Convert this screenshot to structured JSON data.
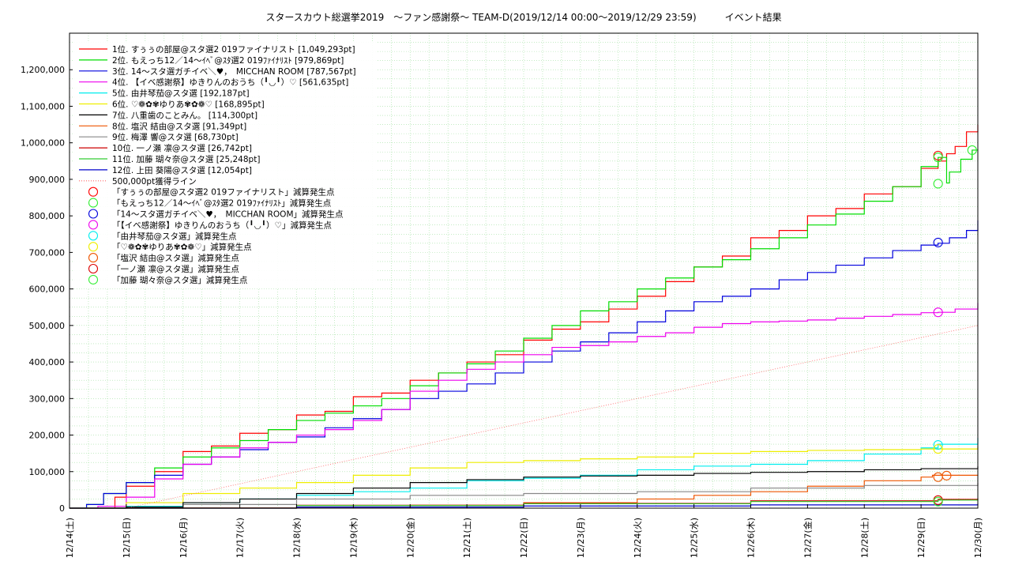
{
  "chart_data": {
    "type": "line",
    "title": "スタースカウト総選挙2019　～ファン感謝祭～ TEAM-D(2019/12/14 00:00～2019/12/29 23:59)　　　イベント結果",
    "xlabel": "",
    "ylabel": "",
    "ylim": [
      0,
      1300000
    ],
    "grid": true,
    "legend_position": "top-left",
    "x_tick_labels": [
      "12/14(土)",
      "12/15(日)",
      "12/16(月)",
      "12/17(火)",
      "12/18(水)",
      "12/19(木)",
      "12/20(金)",
      "12/21(土)",
      "12/22(日)",
      "12/23(月)",
      "12/24(火)",
      "12/25(水)",
      "12/26(木)",
      "12/27(金)",
      "12/28(土)",
      "12/29(日)",
      "12/30(月)"
    ],
    "y_ticks": [
      0,
      100000,
      200000,
      300000,
      400000,
      500000,
      600000,
      700000,
      800000,
      900000,
      1000000,
      1100000,
      1200000
    ],
    "y_tick_labels": [
      "0",
      "100,000",
      "200,000",
      "300,000",
      "400,000",
      "500,000",
      "600,000",
      "700,000",
      "800,000",
      "900,000",
      "1,000,000",
      "1,100,000",
      "1,200,000"
    ],
    "x_unit": "days since 12/14 00:00",
    "series": [
      {
        "name": "1位. すぅぅの部屋@スタ選2 019ファイナリスト [1,049,293pt]",
        "color": "#ff0000",
        "x": [
          0,
          0.5,
          0.8,
          1.0,
          1.5,
          2.0,
          2.5,
          3.0,
          3.5,
          4.0,
          4.5,
          5.0,
          5.5,
          6.0,
          6.5,
          7.0,
          7.5,
          8.0,
          8.5,
          9.0,
          9.5,
          10.0,
          10.5,
          11.0,
          11.5,
          12.0,
          12.5,
          13.0,
          13.5,
          14.0,
          14.5,
          15.0,
          15.3,
          15.45,
          15.6,
          15.8,
          16.0
        ],
        "y": [
          0,
          0,
          30000,
          60000,
          100000,
          155000,
          170000,
          205000,
          215000,
          255000,
          265000,
          305000,
          315000,
          350000,
          370000,
          400000,
          420000,
          460000,
          490000,
          510000,
          545000,
          580000,
          620000,
          660000,
          690000,
          740000,
          760000,
          800000,
          820000,
          860000,
          880000,
          930000,
          950000,
          970000,
          990000,
          1030000,
          1049293
        ]
      },
      {
        "name": "2位. もえっち12／14～ｲﾍﾞ@ｽﾀ選2 019ﾌｧｲﾅﾘｽﾄ [979,869pt]",
        "color": "#00dd00",
        "x": [
          0,
          0.3,
          0.6,
          1.0,
          1.5,
          2.0,
          2.5,
          3.0,
          3.5,
          4.0,
          4.5,
          5.0,
          5.5,
          6.0,
          6.5,
          7.0,
          7.5,
          8.0,
          8.5,
          9.0,
          9.5,
          10.0,
          10.5,
          11.0,
          11.5,
          12.0,
          12.5,
          13.0,
          13.5,
          14.0,
          14.5,
          15.0,
          15.3,
          15.45,
          15.5,
          15.7,
          15.9,
          16.0
        ],
        "y": [
          0,
          10000,
          40000,
          70000,
          110000,
          140000,
          165000,
          185000,
          215000,
          240000,
          260000,
          280000,
          300000,
          335000,
          370000,
          395000,
          430000,
          465000,
          500000,
          540000,
          565000,
          600000,
          630000,
          660000,
          680000,
          710000,
          740000,
          775000,
          805000,
          840000,
          880000,
          935000,
          960000,
          890000,
          920000,
          955000,
          980000,
          979869
        ]
      },
      {
        "name": "3位. 14～スタ選ガチイベ＼♥，　MICCHAN ROOM [787,567pt]",
        "color": "#0000dd",
        "x": [
          0,
          0.3,
          0.6,
          1.0,
          1.5,
          2.0,
          2.5,
          3.0,
          3.5,
          4.0,
          4.5,
          5.0,
          5.5,
          6.0,
          6.5,
          7.0,
          7.5,
          8.0,
          8.5,
          9.0,
          9.5,
          10.0,
          10.5,
          11.0,
          11.5,
          12.0,
          12.5,
          13.0,
          13.5,
          14.0,
          14.5,
          15.0,
          15.3,
          15.5,
          15.8,
          16.0
        ],
        "y": [
          0,
          10000,
          40000,
          70000,
          90000,
          120000,
          140000,
          160000,
          180000,
          195000,
          220000,
          245000,
          270000,
          300000,
          320000,
          340000,
          370000,
          400000,
          430000,
          455000,
          480000,
          510000,
          540000,
          565000,
          580000,
          600000,
          625000,
          645000,
          665000,
          685000,
          705000,
          720000,
          725000,
          740000,
          760000,
          787567
        ]
      },
      {
        "name": "4位. 【イベ感謝祭】ゆきりんのおうち（╹◡╹）♡ [561,635pt]",
        "color": "#ee00ee",
        "x": [
          0,
          0.5,
          1.0,
          1.5,
          2.0,
          2.5,
          3.0,
          3.5,
          4.0,
          4.5,
          5.0,
          5.5,
          6.0,
          6.5,
          7.0,
          7.5,
          8.0,
          8.5,
          9.0,
          9.5,
          10.0,
          10.5,
          11.0,
          11.5,
          12.0,
          12.5,
          13.0,
          13.5,
          14.0,
          14.5,
          15.0,
          15.3,
          15.6,
          16.0
        ],
        "y": [
          0,
          5000,
          30000,
          80000,
          120000,
          140000,
          165000,
          180000,
          200000,
          215000,
          240000,
          270000,
          320000,
          350000,
          380000,
          400000,
          420000,
          440000,
          445000,
          455000,
          470000,
          480000,
          495000,
          505000,
          510000,
          512000,
          515000,
          520000,
          525000,
          530000,
          535000,
          536000,
          545000,
          561635
        ]
      },
      {
        "name": "5位. 由井琴茄@スタ選 [192,187pt]",
        "color": "#00eeee",
        "x": [
          0,
          1,
          2,
          3,
          4,
          5,
          6,
          7,
          8,
          9,
          10,
          11,
          12,
          13,
          14,
          15,
          15.3,
          16
        ],
        "y": [
          0,
          5000,
          15000,
          25000,
          35000,
          45000,
          55000,
          75000,
          82000,
          90000,
          105000,
          115000,
          120000,
          130000,
          148000,
          165000,
          175000,
          192187
        ]
      },
      {
        "name": "6位. ♡❁✿✾ゆりあ✾✿❁♡ [168,895pt]",
        "color": "#eeee00",
        "x": [
          0,
          1,
          2,
          3,
          4,
          5,
          6,
          7,
          8,
          9,
          10,
          11,
          12,
          13,
          14,
          15,
          15.3,
          16
        ],
        "y": [
          0,
          15000,
          40000,
          55000,
          70000,
          90000,
          110000,
          125000,
          130000,
          135000,
          140000,
          150000,
          155000,
          158000,
          160000,
          162000,
          162000,
          168895
        ]
      },
      {
        "name": "7位. 八重歯のことみん。 [114,300pt]",
        "color": "#000000",
        "x": [
          0,
          1,
          2,
          3,
          4,
          5,
          6,
          7,
          8,
          9,
          10,
          11,
          12,
          13,
          14,
          15,
          16
        ],
        "y": [
          0,
          3000,
          15000,
          25000,
          40000,
          55000,
          70000,
          78000,
          85000,
          88000,
          90000,
          95000,
          98000,
          100000,
          105000,
          108000,
          114300
        ]
      },
      {
        "name": "8位. 塩沢 結由@スタ選 [91,349pt]",
        "color": "#ee5500",
        "x": [
          0,
          2,
          4,
          6,
          8,
          10,
          11,
          12,
          13,
          14,
          15,
          15.2,
          16
        ],
        "y": [
          0,
          1000,
          3000,
          8000,
          15000,
          25000,
          35000,
          45000,
          60000,
          75000,
          85000,
          90000,
          91349
        ]
      },
      {
        "name": "9位. 梅澤 響@スタ選 [68,730pt]",
        "color": "#888888",
        "x": [
          0,
          2,
          4,
          6,
          8,
          10,
          12,
          14,
          16
        ],
        "y": [
          0,
          10000,
          25000,
          35000,
          40000,
          45000,
          55000,
          62000,
          68730
        ]
      },
      {
        "name": "10位. 一ノ瀬 凛@スタ選 [26,742pt]",
        "color": "#cc0000",
        "x": [
          0,
          4,
          8,
          12,
          15.3,
          16
        ],
        "y": [
          0,
          8000,
          13000,
          20000,
          24000,
          26742
        ]
      },
      {
        "name": "11位. 加藤 瑚々奈@スタ選 [25,248pt]",
        "color": "#33cc33",
        "x": [
          0,
          4,
          8,
          12,
          15.3,
          16
        ],
        "y": [
          0,
          7000,
          12000,
          18000,
          22000,
          25248
        ]
      },
      {
        "name": "12位. 上田 葵陽@スタ選 [12,054pt]",
        "color": "#0000cc",
        "x": [
          0,
          4,
          8,
          12,
          16
        ],
        "y": [
          0,
          3000,
          6000,
          9000,
          12054
        ]
      },
      {
        "name": "500,000pt獲得ライン",
        "color": "#ff6666",
        "dashed": true,
        "x": [
          1,
          16
        ],
        "y": [
          0,
          500000
        ]
      }
    ],
    "markers": [
      {
        "name": "「すぅぅの部屋@スタ選2 019ファイナリスト」減算発生点",
        "color": "#ff0000",
        "points": [
          [
            15.3,
            965000
          ]
        ]
      },
      {
        "name": "「もえっち12／14～ｲﾍﾞ@ｽﾀ選2 019ﾌｧｲﾅﾘｽﾄ」減算発生点",
        "color": "#33ee33",
        "points": [
          [
            15.3,
            888000
          ],
          [
            15.3,
            960000
          ],
          [
            15.9,
            980000
          ]
        ]
      },
      {
        "name": "「14～スタ選ガチイベ＼♥，　MICCHAN ROOM」減算発生点",
        "color": "#0000dd",
        "points": [
          [
            15.3,
            727000
          ]
        ]
      },
      {
        "name": "「【イベ感謝祭】ゆきりんのおうち（╹◡╹）♡」減算発生点",
        "color": "#ee00ee",
        "points": [
          [
            15.3,
            536000
          ]
        ]
      },
      {
        "name": "「由井琴茄@スタ選」減算発生点",
        "color": "#00eeee",
        "points": [
          [
            15.3,
            173000
          ]
        ]
      },
      {
        "name": "「♡❁✿✾ゆりあ✾✿❁♡」減算発生点",
        "color": "#eeee00",
        "points": [
          [
            15.3,
            162000
          ]
        ]
      },
      {
        "name": "「塩沢 結由@スタ選」減算発生点",
        "color": "#ee5500",
        "points": [
          [
            15.3,
            85000
          ],
          [
            15.45,
            89000
          ]
        ]
      },
      {
        "name": "「一ノ瀬 凛@スタ選」減算発生点",
        "color": "#dd0000",
        "points": [
          [
            15.3,
            22000
          ]
        ]
      },
      {
        "name": "「加藤 瑚々奈@スタ選」減算発生点",
        "color": "#33ee33",
        "points": [
          [
            15.3,
            18000
          ]
        ]
      }
    ]
  }
}
